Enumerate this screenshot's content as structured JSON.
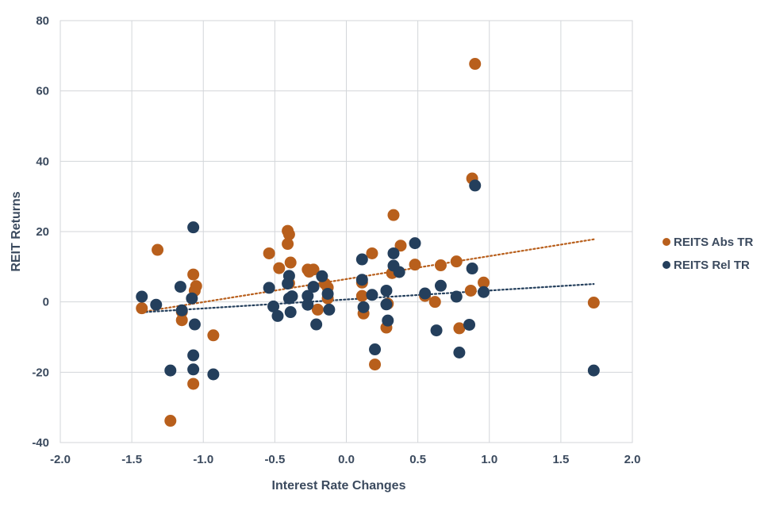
{
  "chart_data": {
    "type": "scatter",
    "title": "",
    "xlabel": "Interest Rate Changes",
    "ylabel": "REIT Returns",
    "xlim": [
      -2.0,
      2.0
    ],
    "ylim": [
      -40,
      80
    ],
    "xticks": [
      "-2.0",
      "-1.5",
      "-1.0",
      "-0.5",
      "0.0",
      "0.5",
      "1.0",
      "1.5",
      "2.0"
    ],
    "yticks": [
      "80",
      "60",
      "40",
      "20",
      "0",
      "-20",
      "-40"
    ],
    "grid": true,
    "legend_position": "right",
    "series": [
      {
        "name": "REITS Abs TR",
        "color": "#b85f1c",
        "trendline": "linear",
        "points": [
          [
            -1.43,
            -1.8
          ],
          [
            -1.32,
            14.8
          ],
          [
            -1.15,
            -2.8
          ],
          [
            -1.15,
            -5.2
          ],
          [
            -1.07,
            7.8
          ],
          [
            -1.06,
            3.2
          ],
          [
            -1.05,
            4.5
          ],
          [
            -1.07,
            -23.3
          ],
          [
            -1.23,
            -33.8
          ],
          [
            -0.93,
            -9.5
          ],
          [
            -0.54,
            13.8
          ],
          [
            -0.47,
            9.6
          ],
          [
            -0.41,
            20.2
          ],
          [
            -0.4,
            19.2
          ],
          [
            -0.41,
            16.5
          ],
          [
            -0.39,
            11.2
          ],
          [
            -0.4,
            5.3
          ],
          [
            -0.27,
            9.2
          ],
          [
            -0.26,
            8.6
          ],
          [
            -0.23,
            9.2
          ],
          [
            -0.2,
            -2.2
          ],
          [
            -0.15,
            5.2
          ],
          [
            -0.13,
            4.1
          ],
          [
            -0.13,
            1.0
          ],
          [
            0.11,
            5.5
          ],
          [
            0.11,
            1.7
          ],
          [
            0.12,
            -3.3
          ],
          [
            0.18,
            13.8
          ],
          [
            0.2,
            -17.8
          ],
          [
            0.28,
            -7.3
          ],
          [
            0.29,
            -0.5
          ],
          [
            0.33,
            24.7
          ],
          [
            0.32,
            8.2
          ],
          [
            0.38,
            16.0
          ],
          [
            0.48,
            10.6
          ],
          [
            0.55,
            1.7
          ],
          [
            0.62,
            0.0
          ],
          [
            0.66,
            10.4
          ],
          [
            0.77,
            11.5
          ],
          [
            0.79,
            -7.5
          ],
          [
            0.87,
            3.2
          ],
          [
            0.88,
            35.1
          ],
          [
            0.9,
            67.7
          ],
          [
            0.96,
            5.5
          ],
          [
            1.73,
            -0.2
          ]
        ]
      },
      {
        "name": "REITS Rel TR",
        "color": "#243f5c",
        "trendline": "linear",
        "points": [
          [
            -1.43,
            1.5
          ],
          [
            -1.33,
            -0.8
          ],
          [
            -1.16,
            4.3
          ],
          [
            -1.15,
            -2.4
          ],
          [
            -1.08,
            1.0
          ],
          [
            -1.07,
            21.2
          ],
          [
            -1.06,
            -6.4
          ],
          [
            -1.07,
            -15.2
          ],
          [
            -1.07,
            -19.2
          ],
          [
            -1.23,
            -19.5
          ],
          [
            -0.93,
            -20.6
          ],
          [
            -0.54,
            4.0
          ],
          [
            -0.51,
            -1.3
          ],
          [
            -0.48,
            -4.0
          ],
          [
            -0.41,
            5.2
          ],
          [
            -0.4,
            1.0
          ],
          [
            -0.4,
            7.4
          ],
          [
            -0.38,
            1.6
          ],
          [
            -0.39,
            -2.9
          ],
          [
            -0.27,
            1.7
          ],
          [
            -0.27,
            -0.8
          ],
          [
            -0.23,
            4.3
          ],
          [
            -0.21,
            -6.4
          ],
          [
            -0.17,
            7.3
          ],
          [
            -0.13,
            2.3
          ],
          [
            -0.12,
            -2.2
          ],
          [
            0.11,
            12.1
          ],
          [
            0.11,
            6.3
          ],
          [
            0.12,
            -1.5
          ],
          [
            0.18,
            2.0
          ],
          [
            0.2,
            -13.5
          ],
          [
            0.28,
            3.2
          ],
          [
            0.28,
            -0.7
          ],
          [
            0.29,
            -5.3
          ],
          [
            0.33,
            13.8
          ],
          [
            0.33,
            10.3
          ],
          [
            0.37,
            8.5
          ],
          [
            0.48,
            16.7
          ],
          [
            0.55,
            2.4
          ],
          [
            0.63,
            -8.1
          ],
          [
            0.66,
            4.6
          ],
          [
            0.77,
            1.5
          ],
          [
            0.79,
            -14.4
          ],
          [
            0.86,
            -6.5
          ],
          [
            0.88,
            9.5
          ],
          [
            0.9,
            33.1
          ],
          [
            0.96,
            2.8
          ],
          [
            1.73,
            -19.5
          ]
        ]
      }
    ]
  }
}
